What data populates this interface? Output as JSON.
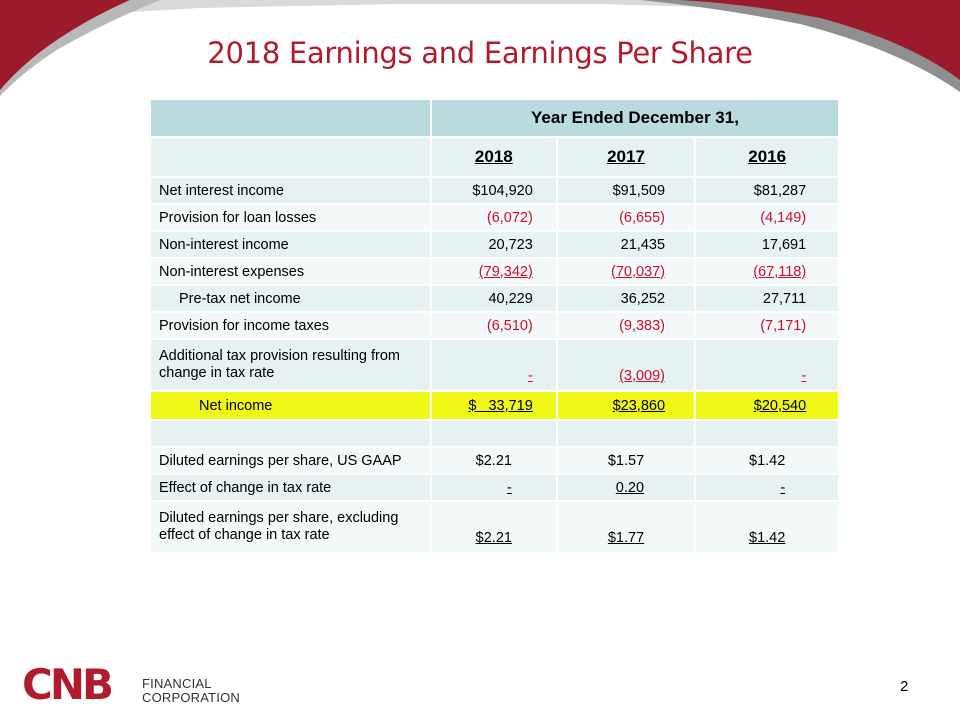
{
  "title": "2018 Earnings and Earnings Per Share",
  "table": {
    "period_header": "Year Ended December 31,",
    "years": [
      "2018",
      "2017",
      "2016"
    ],
    "rows": [
      {
        "label": "Net interest income",
        "values": [
          "$104,920",
          "$91,509",
          "$81,287"
        ]
      },
      {
        "label": "Provision for loan losses",
        "values": [
          "(6,072)",
          "(6,655)",
          "(4,149)"
        ]
      },
      {
        "label": "Non-interest income",
        "values": [
          "20,723",
          "21,435",
          "17,691"
        ]
      },
      {
        "label": "Non-interest expenses",
        "values": [
          "(79,342)",
          "(70,037)",
          "(67,118)"
        ]
      },
      {
        "label": "Pre-tax net income",
        "values": [
          "40,229",
          "36,252",
          "27,711"
        ]
      },
      {
        "label": "Provision for income taxes",
        "values": [
          "(6,510)",
          "(9,383)",
          "(7,171)"
        ]
      },
      {
        "label": "Additional tax provision resulting from change in tax rate",
        "values": [
          "-",
          "(3,009)",
          "-"
        ]
      },
      {
        "label": "Net income",
        "values": [
          "$   33,719",
          "$23,860",
          "$20,540"
        ]
      },
      {
        "label": "Diluted earnings per share, US GAAP",
        "values": [
          "$2.21",
          "$1.57",
          "$1.42"
        ]
      },
      {
        "label": "Effect of change in tax rate",
        "values": [
          "-",
          "0.20",
          "-"
        ]
      },
      {
        "label": "Diluted earnings per share, excluding effect of change in tax rate",
        "values": [
          "$2.21",
          "$1.77",
          "$1.42"
        ]
      }
    ]
  },
  "footer": {
    "logo_mark": "CNB",
    "logo_line1": "FINANCIAL",
    "logo_line2": "CORPORATION",
    "page_number": "2"
  },
  "colors": {
    "title": "#b01c2e",
    "negative": "#c8102e",
    "header_fill": "#b9dbe0",
    "row_fill": "#e6f1f2",
    "highlight": "#eef716"
  }
}
